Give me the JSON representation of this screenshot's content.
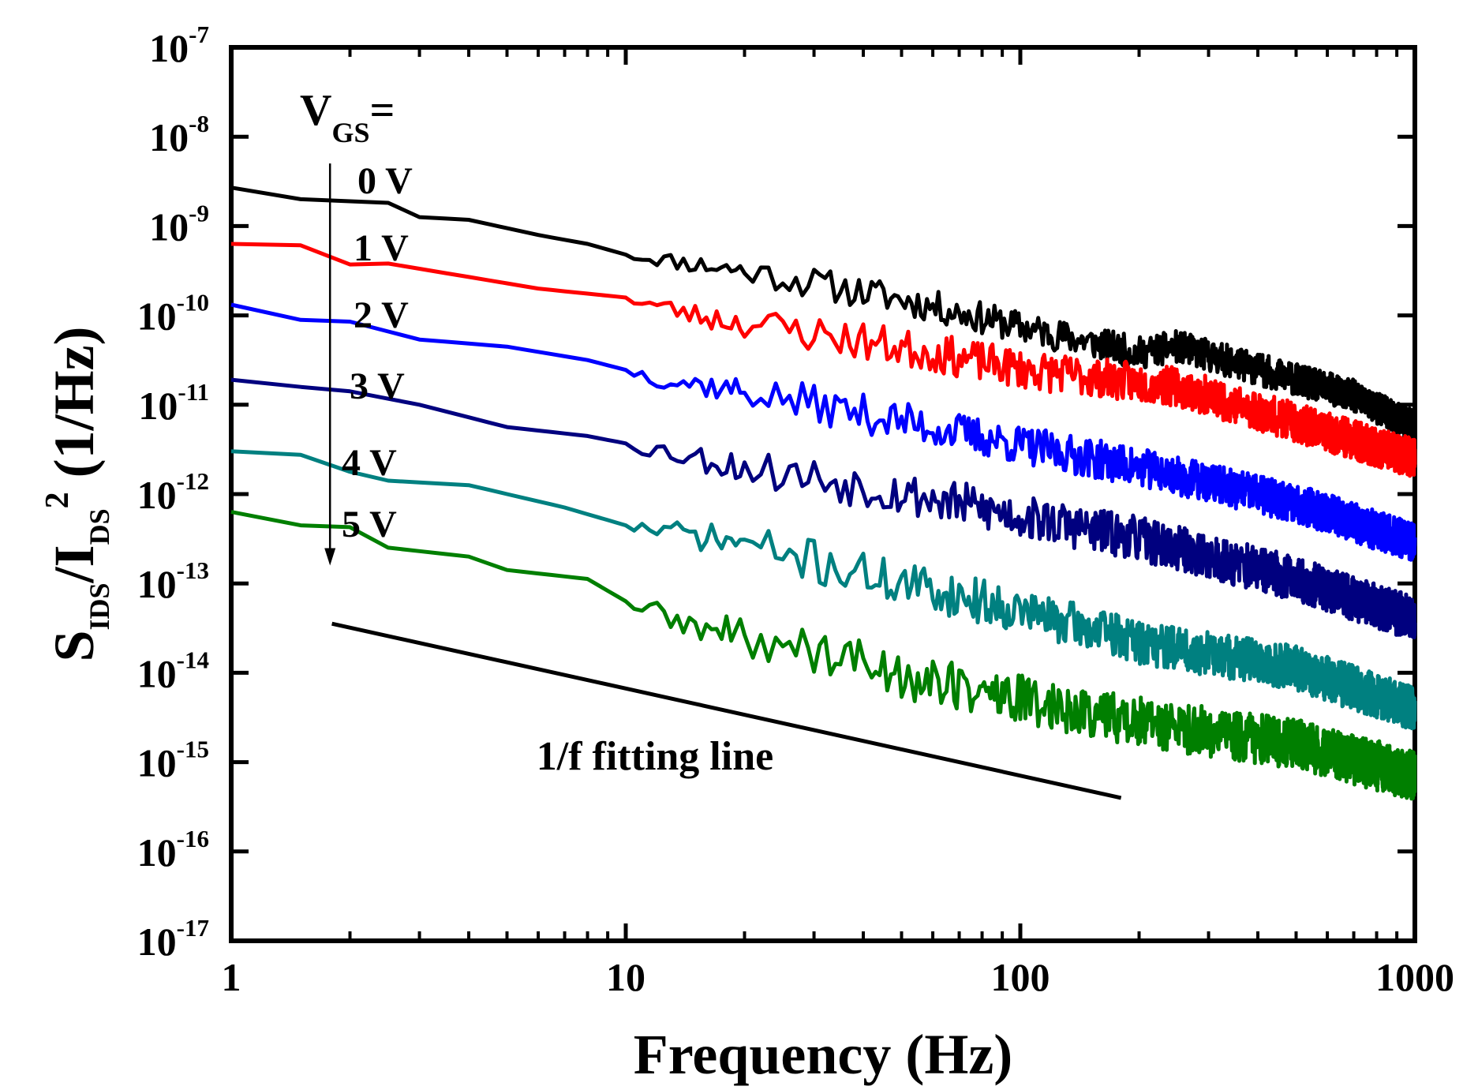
{
  "chart_data": {
    "type": "line",
    "x_scale": "log",
    "y_scale": "log",
    "xlim": [
      1,
      1000
    ],
    "ylim": [
      1e-17,
      1e-07
    ],
    "xlabel": "Frequency (Hz)",
    "ylabel": {
      "main": "S",
      "sub1": "IDS",
      "slash": "/I",
      "sub2": "DS",
      "sup": "2",
      "unit": " (1/Hz)"
    },
    "x_ticks": [
      {
        "value": 1,
        "label": "1"
      },
      {
        "value": 10,
        "label": "10"
      },
      {
        "value": 100,
        "label": "100"
      },
      {
        "value": 1000,
        "label": "1000"
      }
    ],
    "y_ticks": [
      {
        "value": -17,
        "base": "10",
        "exp": "-17"
      },
      {
        "value": -16,
        "base": "10",
        "exp": "-16"
      },
      {
        "value": -15,
        "base": "10",
        "exp": "-15"
      },
      {
        "value": -14,
        "base": "10",
        "exp": "-14"
      },
      {
        "value": -13,
        "base": "10",
        "exp": "-13"
      },
      {
        "value": -12,
        "base": "10",
        "exp": "-12"
      },
      {
        "value": -11,
        "base": "10",
        "exp": "-11"
      },
      {
        "value": -10,
        "base": "10",
        "exp": "-10"
      },
      {
        "value": -9,
        "base": "10",
        "exp": "-9"
      },
      {
        "value": -8,
        "base": "10",
        "exp": "-8"
      },
      {
        "value": -7,
        "base": "10",
        "exp": "-7"
      }
    ],
    "legend_title": {
      "main": "V",
      "sub": "GS",
      "eq": "="
    },
    "series": [
      {
        "name": "0 V",
        "color": "#000000",
        "start_log10": -8.57,
        "noise": 0.18,
        "seed": 11,
        "points": [
          [
            1,
            -8.57
          ],
          [
            1.5,
            -8.7
          ],
          [
            2.5,
            -8.74
          ],
          [
            3,
            -8.9
          ],
          [
            4,
            -8.93
          ],
          [
            6,
            -9.1
          ],
          [
            8,
            -9.2
          ],
          [
            10,
            -9.32
          ],
          [
            20,
            -9.5
          ],
          [
            50,
            -9.82
          ],
          [
            100,
            -10.13
          ],
          [
            200,
            -10.42
          ],
          [
            250,
            -10.35
          ],
          [
            400,
            -10.6
          ],
          [
            700,
            -10.9
          ],
          [
            1000,
            -11.25
          ]
        ]
      },
      {
        "name": "1 V",
        "color": "#ff0000",
        "start_log10": -9.2,
        "noise": 0.22,
        "seed": 23,
        "points": [
          [
            1,
            -9.2
          ],
          [
            1.7,
            -9.22
          ],
          [
            2,
            -9.43
          ],
          [
            2.5,
            -9.42
          ],
          [
            4,
            -9.57
          ],
          [
            6,
            -9.7
          ],
          [
            10,
            -9.8
          ],
          [
            15,
            -10.0
          ],
          [
            30,
            -10.2
          ],
          [
            60,
            -10.42
          ],
          [
            100,
            -10.6
          ],
          [
            250,
            -10.8
          ],
          [
            500,
            -11.2
          ],
          [
            1000,
            -11.6
          ]
        ]
      },
      {
        "name": "2 V",
        "color": "#0000ff",
        "start_log10": -9.88,
        "noise": 0.22,
        "seed": 37,
        "points": [
          [
            1,
            -9.88
          ],
          [
            1.5,
            -10.05
          ],
          [
            2,
            -10.07
          ],
          [
            3,
            -10.27
          ],
          [
            5,
            -10.35
          ],
          [
            8,
            -10.5
          ],
          [
            12,
            -10.7
          ],
          [
            20,
            -10.85
          ],
          [
            40,
            -11.1
          ],
          [
            100,
            -11.45
          ],
          [
            200,
            -11.7
          ],
          [
            500,
            -12.1
          ],
          [
            1000,
            -12.55
          ]
        ]
      },
      {
        "name": "3 V",
        "color": "#00007f",
        "start_log10": -10.72,
        "noise": 0.25,
        "seed": 53,
        "points": [
          [
            1,
            -10.72
          ],
          [
            1.5,
            -10.8
          ],
          [
            2,
            -10.85
          ],
          [
            3,
            -11.0
          ],
          [
            5,
            -11.25
          ],
          [
            8,
            -11.35
          ],
          [
            12,
            -11.5
          ],
          [
            20,
            -11.7
          ],
          [
            40,
            -11.9
          ],
          [
            100,
            -12.25
          ],
          [
            200,
            -12.5
          ],
          [
            500,
            -12.95
          ],
          [
            1000,
            -13.4
          ]
        ]
      },
      {
        "name": "4 V",
        "color": "#008080",
        "start_log10": -11.52,
        "noise": 0.25,
        "seed": 71,
        "points": [
          [
            1,
            -11.52
          ],
          [
            1.5,
            -11.56
          ],
          [
            2,
            -11.75
          ],
          [
            2.5,
            -11.85
          ],
          [
            4,
            -11.9
          ],
          [
            7,
            -12.15
          ],
          [
            10,
            -12.35
          ],
          [
            20,
            -12.55
          ],
          [
            40,
            -12.9
          ],
          [
            100,
            -13.3
          ],
          [
            200,
            -13.65
          ],
          [
            500,
            -13.95
          ],
          [
            1000,
            -14.4
          ]
        ]
      },
      {
        "name": "5 V",
        "color": "#007f00",
        "start_log10": -12.2,
        "noise": 0.28,
        "seed": 89,
        "points": [
          [
            1,
            -12.2
          ],
          [
            1.5,
            -12.35
          ],
          [
            2,
            -12.37
          ],
          [
            2.5,
            -12.6
          ],
          [
            4,
            -12.7
          ],
          [
            5,
            -12.85
          ],
          [
            8,
            -12.95
          ],
          [
            10,
            -13.2
          ],
          [
            15,
            -13.5
          ],
          [
            30,
            -13.75
          ],
          [
            60,
            -14.1
          ],
          [
            100,
            -14.3
          ],
          [
            200,
            -14.55
          ],
          [
            500,
            -14.8
          ],
          [
            1000,
            -15.15
          ]
        ]
      }
    ],
    "arrow": {
      "x": 1.78,
      "from_log10": -8.3,
      "to_log10": -12.8
    },
    "fit_line": {
      "label": "1/f fitting line",
      "from": [
        1.8,
        -13.45
      ],
      "to": [
        180,
        -15.4
      ]
    }
  }
}
